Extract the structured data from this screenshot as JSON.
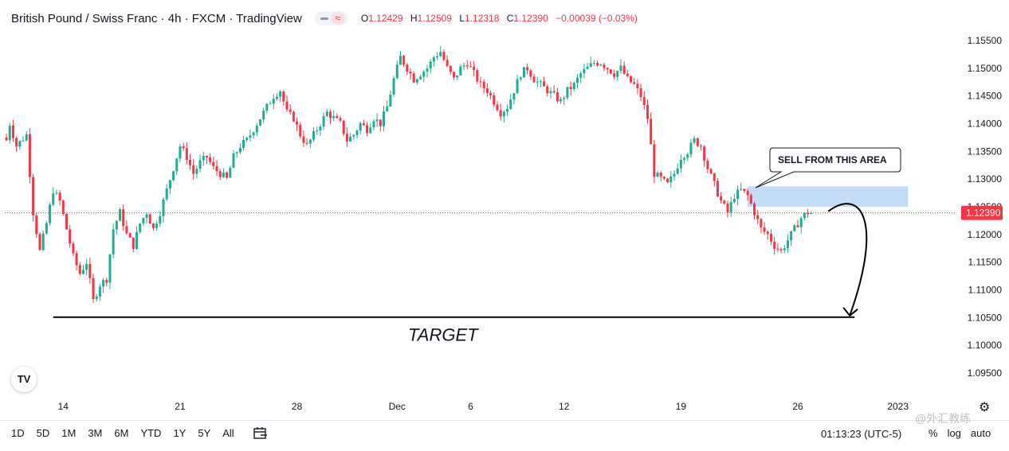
{
  "header": {
    "symbol": "British Pound / Swiss Franc · 4h · FXCM · TradingView",
    "o_label": "O",
    "o_value": "1.12429",
    "h_label": "H",
    "h_value": "1.12509",
    "l_label": "L",
    "l_value": "1.12318",
    "c_label": "C",
    "c_value": "1.12390",
    "change": "−0.00039 (−0.03%)"
  },
  "chart_data": {
    "type": "candlestick",
    "interval": "4h",
    "y_ticks": [
      "1.15500",
      "1.15000",
      "1.14500",
      "1.14000",
      "1.13500",
      "1.13000",
      "1.12500",
      "1.12000",
      "1.11500",
      "1.11000",
      "1.10500",
      "1.10000",
      "1.09500"
    ],
    "ylim": [
      1.092,
      1.158
    ],
    "x_ticks": [
      {
        "label": "14",
        "bar": 17
      },
      {
        "label": "21",
        "bar": 52
      },
      {
        "label": "28",
        "bar": 87
      },
      {
        "label": "Dec",
        "bar": 117
      },
      {
        "label": "6",
        "bar": 139
      },
      {
        "label": "12",
        "bar": 167
      },
      {
        "label": "19",
        "bar": 202
      },
      {
        "label": "26",
        "bar": 237
      },
      {
        "label": "2023",
        "bar": 267
      }
    ],
    "total_bars": 285,
    "last_price": "1.12390",
    "last_close": 1.1239,
    "anchors": [
      [
        0,
        1.137
      ],
      [
        1,
        1.14
      ],
      [
        3,
        1.136
      ],
      [
        6,
        1.138
      ],
      [
        8,
        1.124
      ],
      [
        10,
        1.117
      ],
      [
        12,
        1.122
      ],
      [
        14,
        1.128
      ],
      [
        16,
        1.126
      ],
      [
        18,
        1.121
      ],
      [
        20,
        1.116
      ],
      [
        22,
        1.113
      ],
      [
        24,
        1.115
      ],
      [
        26,
        1.108
      ],
      [
        28,
        1.111
      ],
      [
        30,
        1.112
      ],
      [
        32,
        1.121
      ],
      [
        34,
        1.124
      ],
      [
        36,
        1.12
      ],
      [
        38,
        1.118
      ],
      [
        40,
        1.122
      ],
      [
        42,
        1.124
      ],
      [
        44,
        1.121
      ],
      [
        46,
        1.124
      ],
      [
        48,
        1.128
      ],
      [
        50,
        1.132
      ],
      [
        52,
        1.136
      ],
      [
        54,
        1.134
      ],
      [
        56,
        1.131
      ],
      [
        58,
        1.133
      ],
      [
        60,
        1.134
      ],
      [
        62,
        1.132
      ],
      [
        64,
        1.131
      ],
      [
        66,
        1.13
      ],
      [
        68,
        1.134
      ],
      [
        70,
        1.136
      ],
      [
        72,
        1.137
      ],
      [
        74,
        1.139
      ],
      [
        76,
        1.141
      ],
      [
        78,
        1.143
      ],
      [
        80,
        1.145
      ],
      [
        82,
        1.146
      ],
      [
        84,
        1.142
      ],
      [
        86,
        1.141
      ],
      [
        88,
        1.138
      ],
      [
        90,
        1.136
      ],
      [
        92,
        1.138
      ],
      [
        94,
        1.14
      ],
      [
        96,
        1.142
      ],
      [
        98,
        1.141
      ],
      [
        100,
        1.14
      ],
      [
        102,
        1.137
      ],
      [
        104,
        1.138
      ],
      [
        106,
        1.14
      ],
      [
        108,
        1.139
      ],
      [
        110,
        1.141
      ],
      [
        112,
        1.14
      ],
      [
        114,
        1.143
      ],
      [
        116,
        1.148
      ],
      [
        118,
        1.152
      ],
      [
        120,
        1.15
      ],
      [
        122,
        1.148
      ],
      [
        124,
        1.149
      ],
      [
        126,
        1.15
      ],
      [
        128,
        1.152
      ],
      [
        130,
        1.153
      ],
      [
        132,
        1.15
      ],
      [
        134,
        1.148
      ],
      [
        136,
        1.15
      ],
      [
        138,
        1.151
      ],
      [
        140,
        1.149
      ],
      [
        142,
        1.147
      ],
      [
        144,
        1.146
      ],
      [
        146,
        1.144
      ],
      [
        148,
        1.142
      ],
      [
        150,
        1.143
      ],
      [
        152,
        1.146
      ],
      [
        154,
        1.149
      ],
      [
        156,
        1.15
      ],
      [
        158,
        1.148
      ],
      [
        160,
        1.147
      ],
      [
        162,
        1.146
      ],
      [
        164,
        1.145
      ],
      [
        166,
        1.144
      ],
      [
        168,
        1.146
      ],
      [
        170,
        1.147
      ],
      [
        172,
        1.149
      ],
      [
        174,
        1.15
      ],
      [
        176,
        1.151
      ],
      [
        178,
        1.151
      ],
      [
        180,
        1.15
      ],
      [
        182,
        1.149
      ],
      [
        184,
        1.15
      ],
      [
        186,
        1.148
      ],
      [
        188,
        1.147
      ],
      [
        190,
        1.145
      ],
      [
        192,
        1.141
      ],
      [
        194,
        1.131
      ],
      [
        196,
        1.13
      ],
      [
        198,
        1.129
      ],
      [
        200,
        1.131
      ],
      [
        202,
        1.134
      ],
      [
        204,
        1.135
      ],
      [
        206,
        1.137
      ],
      [
        208,
        1.136
      ],
      [
        210,
        1.132
      ],
      [
        212,
        1.129
      ],
      [
        214,
        1.126
      ],
      [
        216,
        1.124
      ],
      [
        218,
        1.127
      ],
      [
        220,
        1.128
      ],
      [
        222,
        1.127
      ],
      [
        224,
        1.124
      ],
      [
        226,
        1.121
      ],
      [
        228,
        1.12
      ],
      [
        230,
        1.118
      ],
      [
        232,
        1.117
      ],
      [
        234,
        1.119
      ],
      [
        236,
        1.121
      ],
      [
        238,
        1.123
      ],
      [
        240,
        1.124
      ],
      [
        241,
        1.1239
      ]
    ],
    "zone": {
      "bar_start": 222,
      "bar_end": 270,
      "top": 1.1287,
      "bottom": 1.125
    },
    "target": {
      "price": 1.1051,
      "bar_start": 14,
      "bar_end": 254,
      "label": "TARGET"
    },
    "annotation": "SELL FROM THIS AREA",
    "colors": {
      "up": "#26a69a",
      "down": "#ef5350",
      "up_candle": "#22ab94",
      "down_candle": "#f23645",
      "zone": "#bbd6f7",
      "price_line": "#f23645"
    }
  },
  "bottom_bar": {
    "ranges": [
      "1D",
      "5D",
      "1M",
      "3M",
      "6M",
      "YTD",
      "1Y",
      "5Y",
      "All"
    ],
    "clock": "01:13:23 (UTC-5)",
    "percent": "%",
    "log": "log",
    "auto": "auto",
    "calendar_icon": "calendar-range-icon",
    "gear_icon": "gear-icon"
  },
  "logo_text": "TV",
  "watermark": "@外汇教练"
}
